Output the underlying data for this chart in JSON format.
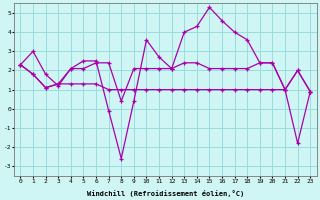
{
  "xlabel": "Windchill (Refroidissement éolien,°C)",
  "xlim": [
    -0.5,
    23.5
  ],
  "ylim": [
    -3.5,
    5.5
  ],
  "xticks": [
    0,
    1,
    2,
    3,
    4,
    5,
    6,
    7,
    8,
    9,
    10,
    11,
    12,
    13,
    14,
    15,
    16,
    17,
    18,
    19,
    20,
    21,
    22,
    23
  ],
  "yticks": [
    -3,
    -2,
    -1,
    0,
    1,
    2,
    3,
    4,
    5
  ],
  "bg_color": "#cff5f5",
  "line_color": "#aa00aa",
  "grid_color": "#99dddd",
  "line1_x": [
    0,
    1,
    2,
    3,
    4,
    5,
    6,
    7,
    8,
    9,
    10,
    11,
    12,
    13,
    14,
    15,
    16,
    17,
    18,
    19,
    20,
    21,
    22,
    23
  ],
  "line1_y": [
    2.3,
    3.0,
    1.8,
    1.2,
    2.1,
    2.5,
    2.5,
    -0.1,
    -2.6,
    0.4,
    3.6,
    2.7,
    2.1,
    4.0,
    4.3,
    5.3,
    4.6,
    4.0,
    3.6,
    2.4,
    2.4,
    1.0,
    2.0,
    0.9
  ],
  "line2_x": [
    0,
    1,
    2,
    3,
    4,
    5,
    6,
    7,
    8,
    9,
    10,
    11,
    12,
    13,
    14,
    15,
    16,
    17,
    18,
    19,
    20,
    21,
    22,
    23
  ],
  "line2_y": [
    2.3,
    1.8,
    1.1,
    1.3,
    2.1,
    2.1,
    2.4,
    2.4,
    0.4,
    2.1,
    2.1,
    2.1,
    2.1,
    2.4,
    2.4,
    2.1,
    2.1,
    2.1,
    2.1,
    2.4,
    2.4,
    1.0,
    2.0,
    0.9
  ],
  "line3_x": [
    0,
    1,
    2,
    3,
    4,
    5,
    6,
    7,
    8,
    9,
    10,
    11,
    12,
    13,
    14,
    15,
    16,
    17,
    18,
    19,
    20,
    21,
    22,
    23
  ],
  "line3_y": [
    2.3,
    1.8,
    1.1,
    1.3,
    1.3,
    1.3,
    1.3,
    1.0,
    1.0,
    1.0,
    1.0,
    1.0,
    1.0,
    1.0,
    1.0,
    1.0,
    1.0,
    1.0,
    1.0,
    1.0,
    1.0,
    1.0,
    -1.8,
    0.9
  ]
}
